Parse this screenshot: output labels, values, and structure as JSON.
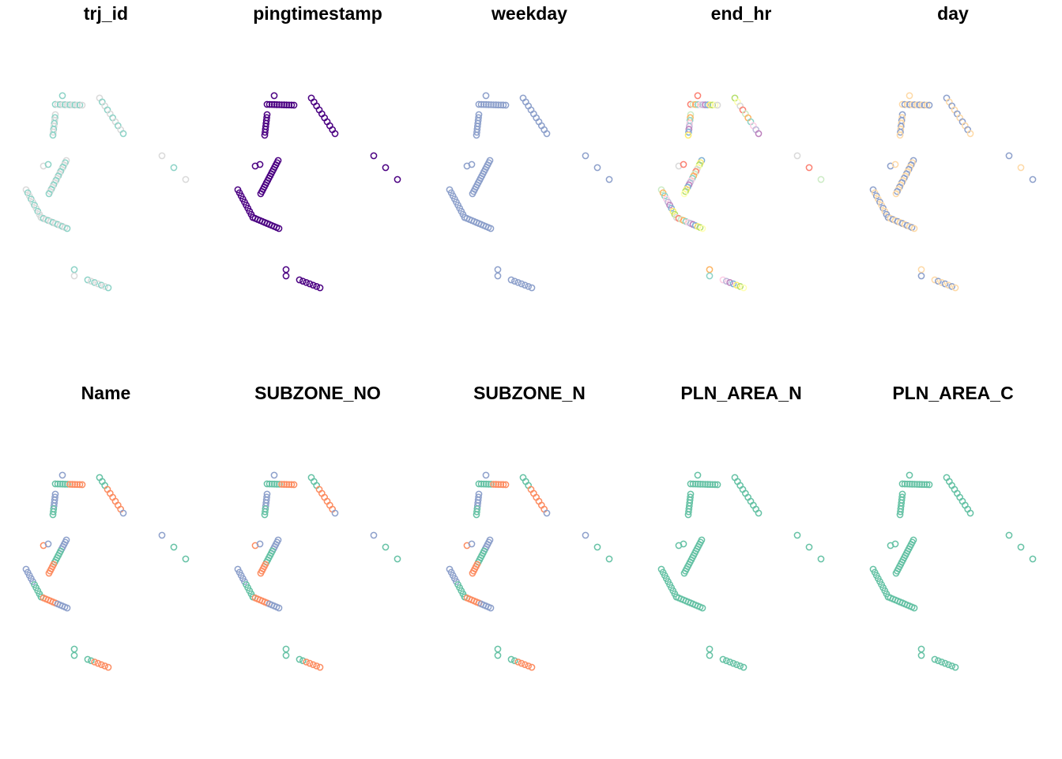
{
  "chart_data": [
    {
      "type": "scatter",
      "title": "trj_id",
      "palette": [
        "#8dd3c7",
        "#fdb462",
        "#bebada",
        "#fb8072",
        "#80b1d3",
        "#b3de69",
        "#fccde5",
        "#d9d9d9",
        "#bc80bd",
        "#ccebc5",
        "#ffed6f",
        "#66c2a5",
        "#a6d854",
        "#e78ac3"
      ]
    },
    {
      "type": "scatter",
      "title": "pingtimestamp",
      "palette": [
        "#0000cd",
        "#4b0082",
        "#8a2be2",
        "#c71585",
        "#ff4500",
        "#ffa500",
        "#ffd700"
      ]
    },
    {
      "type": "scatter",
      "title": "weekday",
      "palette": [
        "#66c2a5",
        "#fc8d62",
        "#8da0cb",
        "#e78ac3",
        "#a6d854",
        "#ffd92f",
        "#e5c494"
      ]
    },
    {
      "type": "scatter",
      "title": "end_hr",
      "palette": [
        "#8dd3c7",
        "#ffffb3",
        "#bebada",
        "#fb8072",
        "#80b1d3",
        "#fdb462",
        "#b3de69",
        "#fccde5",
        "#d9d9d9",
        "#bc80bd",
        "#ccebc5",
        "#ffed6f"
      ]
    },
    {
      "type": "scatter",
      "title": "day",
      "palette": [
        "#fbb4ae",
        "#b3cde3",
        "#ccebc5",
        "#decbe4",
        "#fed9a6",
        "#ffffcc",
        "#e5d8bd",
        "#fddaec",
        "#f2f2f2",
        "#66c2a5",
        "#fc8d62",
        "#8da0cb",
        "#a6d854",
        "#ffd92f"
      ]
    },
    {
      "type": "scatter",
      "title": "Name",
      "palette": [
        "#66c2a5",
        "#fc8d62",
        "#8da0cb"
      ]
    },
    {
      "type": "scatter",
      "title": "SUBZONE_NO",
      "palette": [
        "#66c2a5",
        "#fc8d62",
        "#8da0cb"
      ]
    },
    {
      "type": "scatter",
      "title": "SUBZONE_N",
      "palette": [
        "#66c2a5",
        "#fc8d62",
        "#8da0cb"
      ]
    },
    {
      "type": "scatter",
      "title": "PLN_AREA_N",
      "palette": [
        "#66c2a5"
      ]
    },
    {
      "type": "scatter",
      "title": "PLN_AREA_C",
      "palette": [
        "#66c2a5"
      ]
    }
  ]
}
